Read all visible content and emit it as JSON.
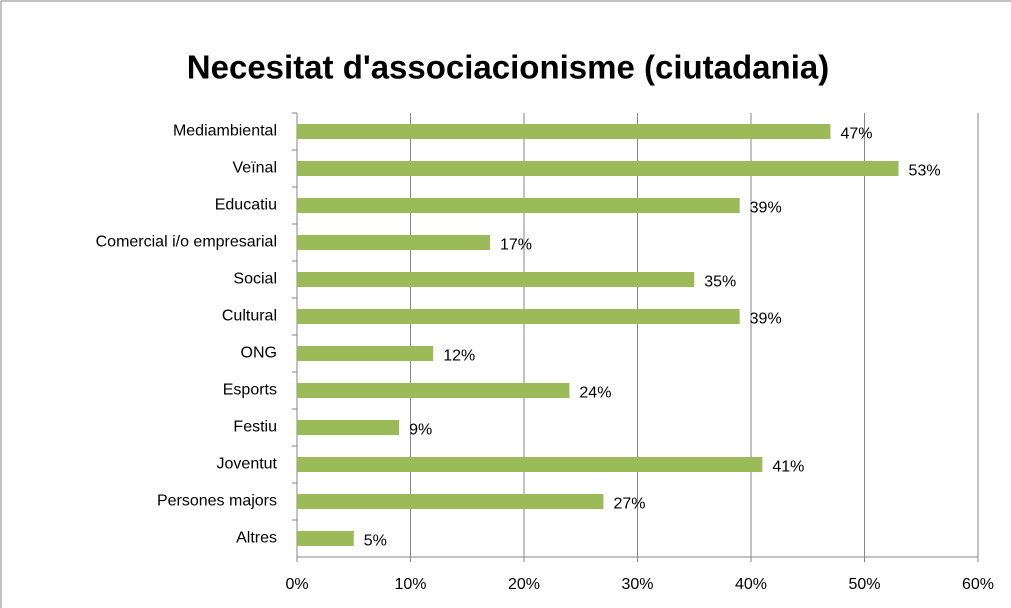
{
  "chart_data": {
    "type": "bar",
    "orientation": "horizontal",
    "title": "Necesitat d'associacionisme (ciutadania)",
    "categories": [
      "Mediambiental",
      "Veïnal",
      "Educatiu",
      "Comercial i/o empresarial",
      "Social",
      "Cultural",
      "ONG",
      "Esports",
      "Festiu",
      "Joventut",
      "Persones majors",
      "Altres"
    ],
    "values": [
      47,
      53,
      39,
      17,
      35,
      39,
      12,
      24,
      9,
      41,
      27,
      5
    ],
    "value_labels": [
      "47%",
      "53%",
      "39%",
      "17%",
      "35%",
      "39%",
      "12%",
      "24%",
      "9%",
      "41%",
      "27%",
      "5%"
    ],
    "color": "#9bbb59",
    "xlim": [
      0,
      60
    ],
    "xticks": [
      {
        "value": 0,
        "label": "0%"
      },
      {
        "value": 10,
        "label": "10%"
      },
      {
        "value": 20,
        "label": "20%"
      },
      {
        "value": 30,
        "label": "30%"
      },
      {
        "value": 40,
        "label": "40%"
      },
      {
        "value": 50,
        "label": "50%"
      },
      {
        "value": 60,
        "label": "60%"
      }
    ],
    "grid": true
  }
}
